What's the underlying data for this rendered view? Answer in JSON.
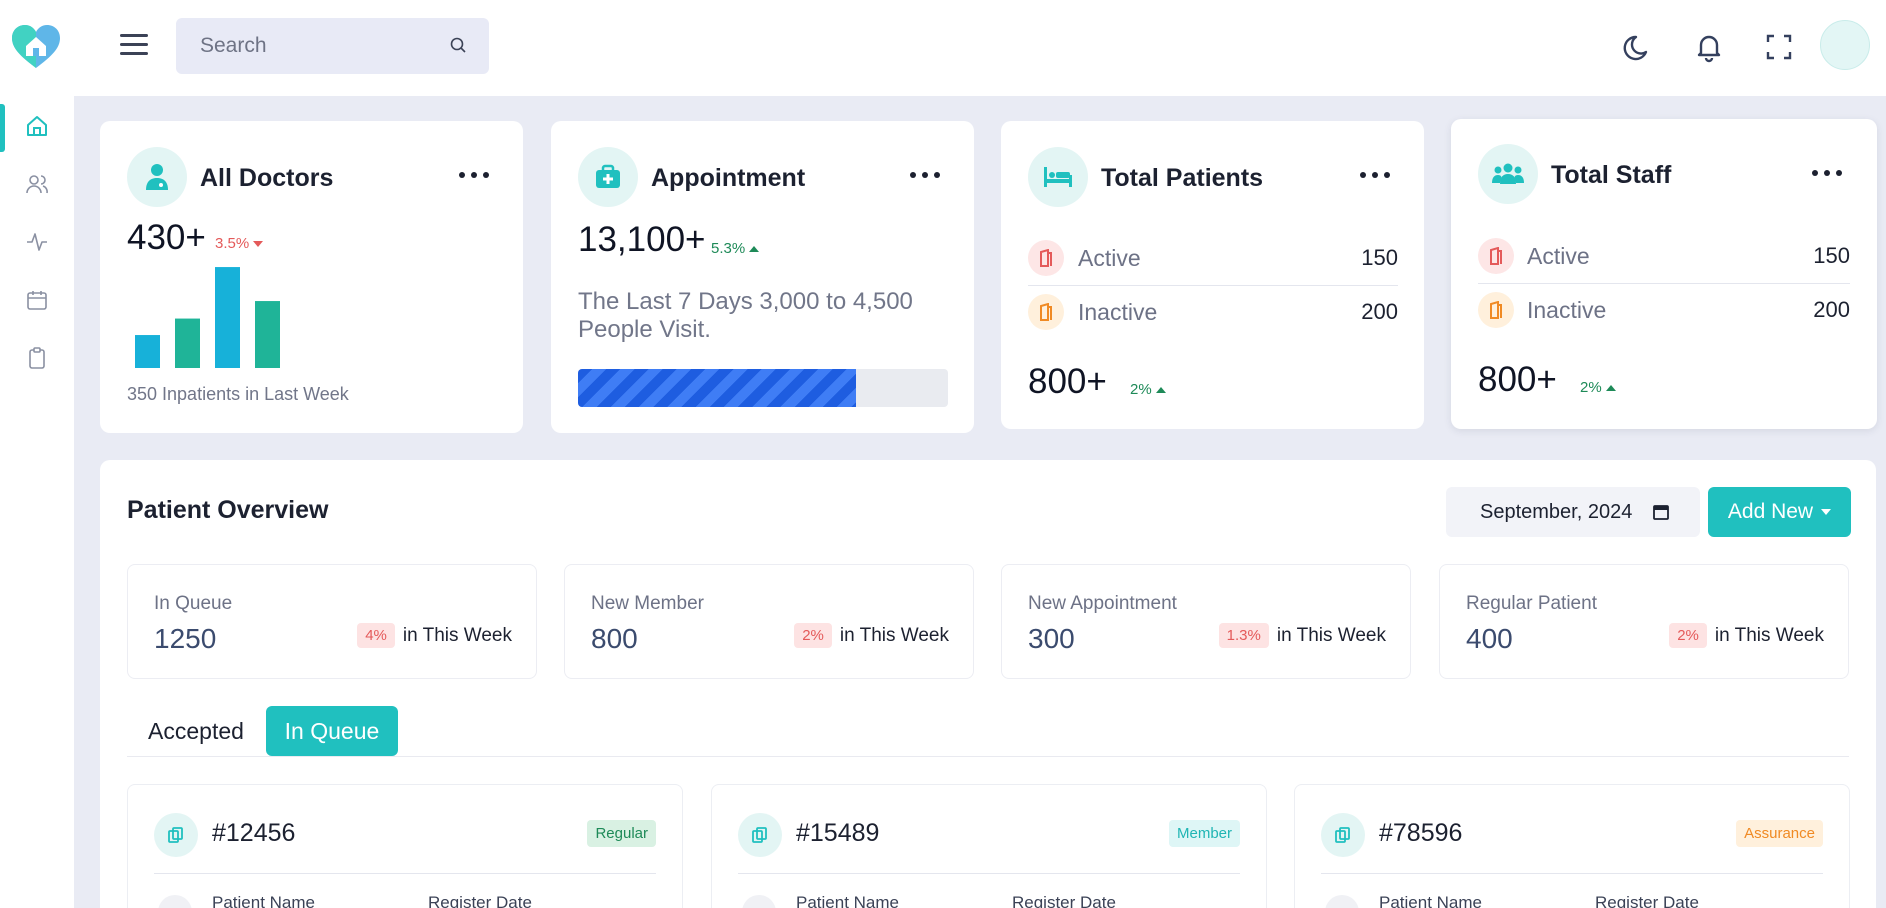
{
  "header": {
    "search_placeholder": "Search",
    "icons": [
      "moon-icon",
      "bell-icon",
      "fullscreen-icon"
    ]
  },
  "sidebar": {
    "items": [
      {
        "name": "home-icon",
        "active": true
      },
      {
        "name": "users-icon",
        "active": false
      },
      {
        "name": "activity-icon",
        "active": false
      },
      {
        "name": "calendar-icon",
        "active": false
      },
      {
        "name": "clipboard-icon",
        "active": false
      }
    ]
  },
  "colors": {
    "accent": "#20c0bf",
    "progress": "#1e5de0",
    "down": "#e45a5a",
    "up": "#1e8a58"
  },
  "cards": {
    "doctors": {
      "title": "All Doctors",
      "value": "430+",
      "change": "3.5%",
      "trend": "down",
      "bars": [
        32,
        48,
        98,
        65
      ],
      "footer": "350 Inpatients in Last Week"
    },
    "appointment": {
      "title": "Appointment",
      "value": "13,100+",
      "change": "5.3%",
      "trend": "up",
      "description": "The Last 7 Days 3,000 to 4,500 People Visit.",
      "progress": 0.75
    },
    "patients": {
      "title": "Total Patients",
      "active_label": "Active",
      "active_value": "150",
      "inactive_label": "Inactive",
      "inactive_value": "200",
      "value": "800+",
      "change": "2%",
      "trend": "up"
    },
    "staff": {
      "title": "Total Staff",
      "active_label": "Active",
      "active_value": "150",
      "inactive_label": "Inactive",
      "inactive_value": "200",
      "value": "800+",
      "change": "2%",
      "trend": "up"
    }
  },
  "overview": {
    "title": "Patient Overview",
    "date": "September, 2024",
    "add_label": "Add New",
    "stats": [
      {
        "label": "In Queue",
        "value": "1250",
        "badge": "4%",
        "week": "in This Week"
      },
      {
        "label": "New Member",
        "value": "800",
        "badge": "2%",
        "week": "in This Week"
      },
      {
        "label": "New Appointment",
        "value": "300",
        "badge": "1.3%",
        "week": "in This Week"
      },
      {
        "label": "Regular Patient",
        "value": "400",
        "badge": "2%",
        "week": "in This Week"
      }
    ],
    "tabs": [
      {
        "label": "Accepted",
        "active": false
      },
      {
        "label": "In Queue",
        "active": true
      }
    ],
    "patients": [
      {
        "id": "#12456",
        "tag": "Regular",
        "tag_color": "#1e8a58",
        "tag_bg": "#d9f1e3",
        "name_label": "Patient Name",
        "date_label": "Register Date"
      },
      {
        "id": "#15489",
        "tag": "Member",
        "tag_color": "#20b5b4",
        "tag_bg": "#def6f6",
        "name_label": "Patient Name",
        "date_label": "Register Date"
      },
      {
        "id": "#78596",
        "tag": "Assurance",
        "tag_color": "#f08a24",
        "tag_bg": "#fff0dc",
        "name_label": "Patient Name",
        "date_label": "Register Date"
      }
    ]
  }
}
